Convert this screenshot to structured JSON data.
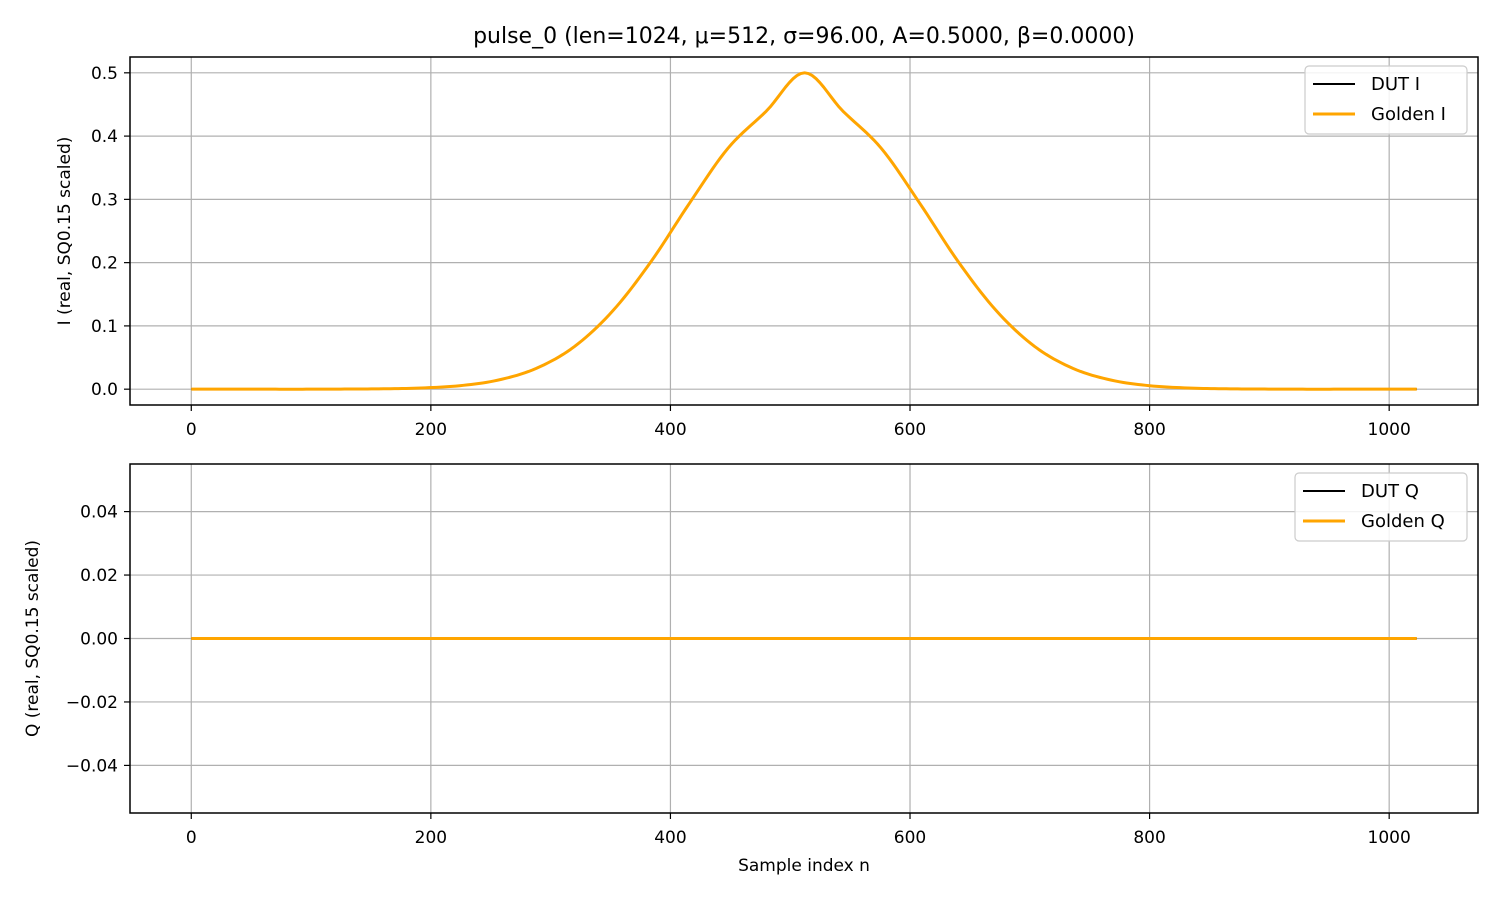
{
  "figure": {
    "title": "pulse_0  (len=1024, μ=512, σ=96.00, A=0.5000, β=0.0000)"
  },
  "colors": {
    "dut": "#000000",
    "golden": "#ffa500",
    "grid": "#b0b0b0",
    "axes": "#000000"
  },
  "chart_data": [
    {
      "type": "line",
      "title": "pulse_0  (len=1024, μ=512, σ=96.00, A=0.5000, β=0.0000)",
      "xlabel": "",
      "ylabel": "I (real, SQ0.15 scaled)",
      "xlim": [
        -51.15,
        1074.15
      ],
      "ylim": [
        -0.025,
        0.525
      ],
      "xticks": [
        0,
        200,
        400,
        600,
        800,
        1000
      ],
      "xtick_labels": [
        "0",
        "200",
        "400",
        "600",
        "800",
        "1000"
      ],
      "yticks": [
        0.0,
        0.1,
        0.2,
        0.3,
        0.4,
        0.5
      ],
      "ytick_labels": [
        "0.0",
        "0.1",
        "0.2",
        "0.3",
        "0.4",
        "0.5"
      ],
      "grid": true,
      "legend": "upper-right",
      "x": [
        0,
        32,
        64,
        96,
        128,
        160,
        192,
        224,
        256,
        288,
        320,
        352,
        384,
        416,
        448,
        480,
        512,
        544,
        576,
        608,
        640,
        672,
        704,
        736,
        768,
        800,
        832,
        864,
        896,
        928,
        960,
        992,
        1023
      ],
      "series": [
        {
          "name": "DUT I",
          "values": [
            0.0,
            0.0,
            0.0,
            0.0,
            0.0002,
            0.0006,
            0.0019,
            0.0055,
            0.0143,
            0.0329,
            0.0676,
            0.1241,
            0.2022,
            0.2942,
            0.3807,
            0.4394,
            0.5,
            0.4394,
            0.3807,
            0.2942,
            0.2022,
            0.1241,
            0.0676,
            0.0329,
            0.0143,
            0.0055,
            0.0019,
            0.0006,
            0.0002,
            0.0,
            0.0,
            0.0,
            0.0
          ]
        },
        {
          "name": "Golden I",
          "values": [
            0.0,
            0.0,
            0.0,
            0.0,
            0.0002,
            0.0006,
            0.0019,
            0.0055,
            0.0143,
            0.0329,
            0.0676,
            0.1241,
            0.2022,
            0.2942,
            0.3807,
            0.4394,
            0.5,
            0.4394,
            0.3807,
            0.2942,
            0.2022,
            0.1241,
            0.0676,
            0.0329,
            0.0143,
            0.0055,
            0.0019,
            0.0006,
            0.0002,
            0.0,
            0.0,
            0.0,
            0.0
          ]
        }
      ]
    },
    {
      "type": "line",
      "title": "",
      "xlabel": "Sample index n",
      "ylabel": "Q (real, SQ0.15 scaled)",
      "xlim": [
        -51.15,
        1074.15
      ],
      "ylim": [
        -0.055,
        0.055
      ],
      "xticks": [
        0,
        200,
        400,
        600,
        800,
        1000
      ],
      "xtick_labels": [
        "0",
        "200",
        "400",
        "600",
        "800",
        "1000"
      ],
      "yticks": [
        -0.04,
        -0.02,
        0.0,
        0.02,
        0.04
      ],
      "ytick_labels": [
        "−0.04",
        "−0.02",
        "0.00",
        "0.02",
        "0.04"
      ],
      "grid": true,
      "legend": "upper-right",
      "x": [
        0,
        1023
      ],
      "series": [
        {
          "name": "DUT Q",
          "values": [
            0.0,
            0.0
          ]
        },
        {
          "name": "Golden Q",
          "values": [
            0.0,
            0.0
          ]
        }
      ]
    }
  ]
}
